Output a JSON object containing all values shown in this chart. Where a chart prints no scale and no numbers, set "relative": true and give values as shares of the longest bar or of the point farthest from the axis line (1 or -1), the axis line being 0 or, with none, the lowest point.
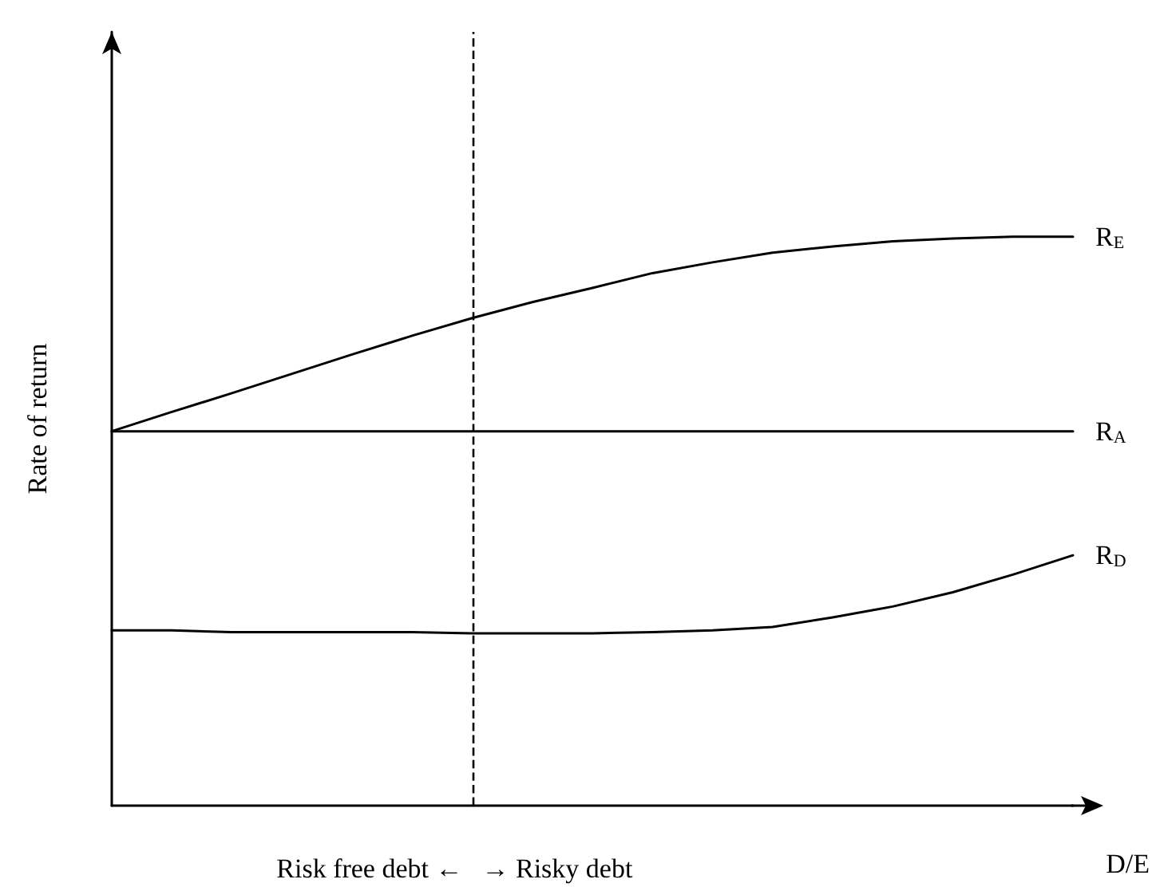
{
  "chart_data": {
    "type": "line",
    "relative": true,
    "xlabel": "D/E",
    "ylabel": "Rate of return",
    "legend": false,
    "grid": false,
    "marker": "none",
    "line_style": "solid",
    "categories": [
      null,
      null,
      null,
      null,
      null,
      null,
      null,
      null,
      null,
      null,
      null,
      null,
      null,
      null,
      null,
      null,
      null
    ],
    "series": [
      {
        "name": "R$_{E}$",
        "color": "#000000",
        "values": [
          0.658,
          0.692,
          0.725,
          0.759,
          0.793,
          0.826,
          0.857,
          0.885,
          0.91,
          0.936,
          0.955,
          0.972,
          0.983,
          0.992,
          0.997,
          1,
          1
        ]
      },
      {
        "name": "R$_{A}$",
        "color": "#000000",
        "values": [
          0.658,
          0.658,
          0.658,
          0.658,
          0.658,
          0.658,
          0.658,
          0.658,
          0.658,
          0.658,
          0.658,
          0.658,
          0.658,
          0.658,
          0.658,
          0.658,
          0.658
        ]
      },
      {
        "name": "R$_{D}$",
        "color": "#000000",
        "values": [
          0.308,
          0.308,
          0.305,
          0.305,
          0.305,
          0.305,
          0.303,
          0.303,
          0.303,
          0.305,
          0.308,
          0.314,
          0.331,
          0.35,
          0.375,
          0.406,
          0.44
        ]
      }
    ],
    "annotations": [
      "Risk free debt ←",
      "→ Risky debt"
    ]
  }
}
